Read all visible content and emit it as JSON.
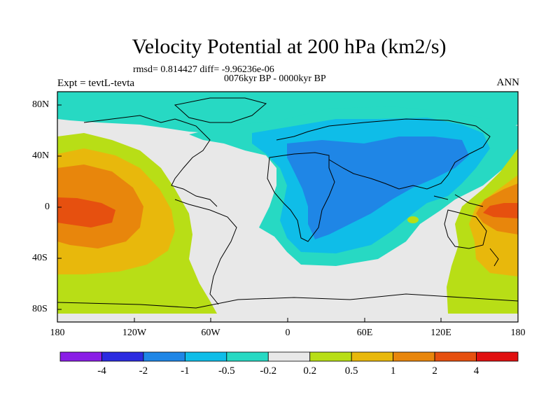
{
  "title": "Velocity Potential at 200 hPa (km2/s)",
  "stats_line": "rmsd= 0.814427 diff= -9.96236e-06",
  "period_line": "0076kyr BP - 0000kyr BP",
  "experiment_label": "Expt = tevtL-tevta",
  "season_label": "ANN",
  "map": {
    "projection": "cylindrical-equidistant",
    "lon_range": [
      -180,
      180
    ],
    "lat_range": [
      -90,
      90
    ],
    "lon_tick_labels": [
      "180",
      "120W",
      "60W",
      "0",
      "60E",
      "120E",
      "180"
    ],
    "lat_tick_labels": [
      "80N",
      "40N",
      "0",
      "40S",
      "80S"
    ],
    "ocean_fill": "#e8e8e8"
  },
  "colorbar": {
    "colors": [
      "#8a1ee6",
      "#2b2be0",
      "#1f86e6",
      "#0fbde8",
      "#27d9c3",
      "#e8e8e8",
      "#b8de16",
      "#e8b80c",
      "#e8860c",
      "#e6500f",
      "#e01010"
    ],
    "labels": [
      "-4",
      "-2",
      "-1",
      "-0.5",
      "-0.2",
      "0.2",
      "0.5",
      "1",
      "2",
      "4"
    ]
  }
}
